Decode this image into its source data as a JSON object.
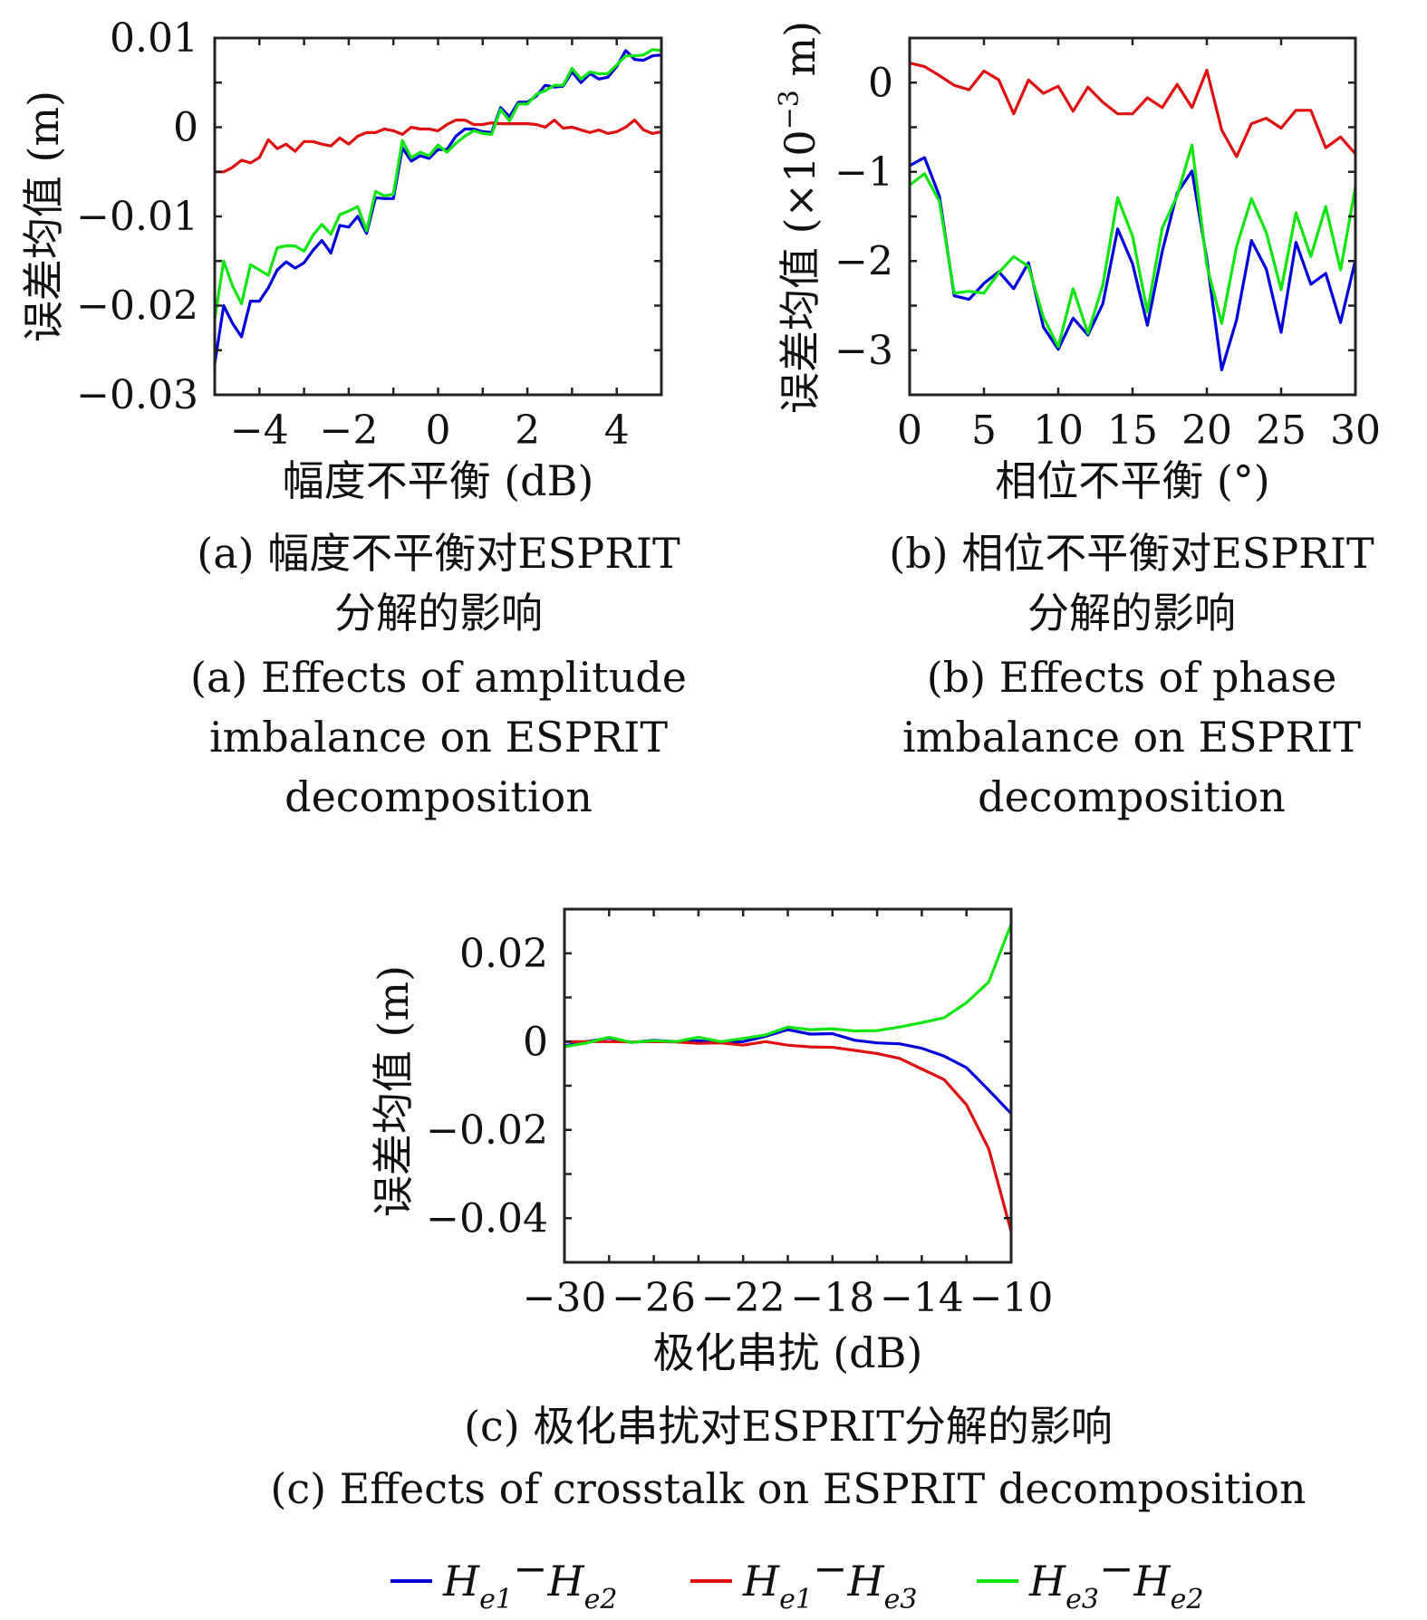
{
  "colors": {
    "He1-He2": "#0000dd",
    "He1-He3": "#e01010",
    "He3-He2": "#11e611"
  },
  "legend": {
    "items": [
      {
        "series": "He1-He2",
        "a": "H",
        "sa": "e1",
        "b": "H",
        "sb": "e2",
        "sep": "−"
      },
      {
        "series": "He1-He3",
        "a": "H",
        "sa": "e1",
        "b": "H",
        "sb": "e3",
        "sep": "−"
      },
      {
        "series": "He3-He2",
        "a": "H",
        "sa": "e3",
        "b": "H",
        "sb": "e2",
        "sep": "−"
      }
    ]
  },
  "chart_data": [
    {
      "type": "line",
      "xlabel": "幅度不平衡 (dB)",
      "ylabel": "误差均值 (m)",
      "xlim": [
        -5,
        5
      ],
      "ylim": [
        -0.03,
        0.01
      ],
      "xticks": [
        -4,
        -2,
        0,
        2,
        4
      ],
      "xtick_labels": [
        "−4",
        "−2",
        "0",
        "2",
        "4"
      ],
      "yticks": [
        -0.03,
        -0.02,
        -0.01,
        0,
        0.01
      ],
      "ytick_labels": [
        "−0.03",
        "−0.02",
        "−0.01",
        "0",
        "0.01"
      ],
      "caption_cn": [
        "(a) 幅度不平衡对ESPRIT",
        "分解的影响"
      ],
      "caption_en": [
        "(a) Effects of amplitude",
        "imbalance on ESPRIT",
        "decomposition"
      ],
      "x": [
        -5,
        -4.8,
        -4.6,
        -4.4,
        -4.2,
        -4,
        -3.8,
        -3.6,
        -3.4,
        -3.2,
        -3,
        -2.8,
        -2.6,
        -2.4,
        -2.2,
        -2,
        -1.8,
        -1.6,
        -1.4,
        -1.2,
        -1,
        -0.8,
        -0.6,
        -0.4,
        -0.2,
        0,
        0.2,
        0.4,
        0.6,
        0.8,
        1,
        1.2,
        1.4,
        1.6,
        1.8,
        2,
        2.2,
        2.4,
        2.6,
        2.8,
        3,
        3.2,
        3.4,
        3.6,
        3.8,
        4,
        4.2,
        4.4,
        4.6,
        4.8,
        5
      ],
      "series": [
        {
          "key": "He1-He2",
          "values": [
            -0.0265,
            -0.02,
            -0.022,
            -0.0235,
            -0.0195,
            -0.0195,
            -0.018,
            -0.016,
            -0.0151,
            -0.0158,
            -0.0152,
            -0.0138,
            -0.0127,
            -0.0141,
            -0.011,
            -0.0112,
            -0.01,
            -0.0119,
            -0.0079,
            -0.008,
            -0.008,
            -0.0023,
            -0.0038,
            -0.0032,
            -0.0035,
            -0.0025,
            -0.0025,
            -0.001,
            -0.0002,
            -0.0002,
            -0.0005,
            -0.0006,
            0.0022,
            0.0012,
            0.0028,
            0.0028,
            0.0035,
            0.0047,
            0.0045,
            0.0046,
            0.0062,
            0.005,
            0.006,
            0.0054,
            0.0056,
            0.0068,
            0.0086,
            0.0076,
            0.0075,
            0.008,
            0.0081
          ]
        },
        {
          "key": "He1-He3",
          "values": [
            -0.005,
            -0.005,
            -0.0045,
            -0.0037,
            -0.004,
            -0.0034,
            -0.0014,
            -0.0024,
            -0.0019,
            -0.0027,
            -0.0016,
            -0.0016,
            -0.0019,
            -0.0021,
            -0.0012,
            -0.0019,
            -0.001,
            -0.0006,
            -0.0006,
            -0.0002,
            -0.0004,
            -0.0008,
            0,
            -0.0002,
            -0.0002,
            -0.0004,
            0.0003,
            0.0008,
            0.0008,
            0.0003,
            0.0003,
            0.0005,
            0.0004,
            0.0004,
            0.0004,
            0.0004,
            0.0003,
            0,
            0.0008,
            -0.0001,
            0,
            -0.0003,
            -0.0006,
            -0.0003,
            -0.0007,
            -0.0005,
            0,
            0.0008,
            -0.0003,
            -0.0007,
            -0.0005
          ]
        },
        {
          "key": "He3-He2",
          "values": [
            -0.0215,
            -0.015,
            -0.0178,
            -0.0198,
            -0.0154,
            -0.016,
            -0.0166,
            -0.0135,
            -0.0133,
            -0.0133,
            -0.0139,
            -0.0121,
            -0.0109,
            -0.012,
            -0.0098,
            -0.0094,
            -0.0089,
            -0.0116,
            -0.0072,
            -0.0077,
            -0.0075,
            -0.0015,
            -0.0034,
            -0.0028,
            -0.0032,
            -0.002,
            -0.0028,
            -0.0018,
            -0.001,
            -0.0004,
            -0.0007,
            -0.0008,
            0.002,
            0.0007,
            0.0026,
            0.0026,
            0.0037,
            0.0041,
            0.0047,
            0.0047,
            0.0066,
            0.0054,
            0.0062,
            0.006,
            0.006,
            0.007,
            0.008,
            0.008,
            0.0081,
            0.0087,
            0.0086
          ]
        }
      ]
    },
    {
      "type": "line",
      "xlabel": "相位不平衡 (°)",
      "ylabel": "误差均值 (×10",
      "ylabel_sup": "−3",
      "ylabel_tail": " m)",
      "xlim": [
        0,
        30
      ],
      "ylim": [
        -3.5,
        0.5
      ],
      "xticks": [
        0,
        5,
        10,
        15,
        20,
        25,
        30
      ],
      "xtick_labels": [
        "0",
        "5",
        "10",
        "15",
        "20",
        "25",
        "30"
      ],
      "yticks": [
        -3,
        -2,
        -1,
        0
      ],
      "ytick_labels": [
        "−3",
        "−2",
        "−1",
        "0"
      ],
      "caption_cn": [
        "(b) 相位不平衡对ESPRIT",
        "分解的影响"
      ],
      "caption_en": [
        "(b) Effects of phase",
        "imbalance on ESPRIT",
        "decomposition"
      ],
      "x": [
        0,
        1,
        2,
        3,
        4,
        5,
        6,
        7,
        8,
        9,
        10,
        11,
        12,
        13,
        14,
        15,
        16,
        17,
        18,
        19,
        20,
        21,
        22,
        23,
        24,
        25,
        26,
        27,
        28,
        29,
        30
      ],
      "series": [
        {
          "key": "He1-He2",
          "values": [
            -0.93,
            -0.84,
            -1.27,
            -2.39,
            -2.43,
            -2.25,
            -2.12,
            -2.31,
            -2.02,
            -2.74,
            -2.99,
            -2.64,
            -2.83,
            -2.48,
            -1.64,
            -2.03,
            -2.72,
            -1.89,
            -1.24,
            -0.99,
            -1.98,
            -3.22,
            -2.66,
            -1.77,
            -2.09,
            -2.8,
            -1.79,
            -2.26,
            -2.14,
            -2.69,
            -1.99
          ]
        },
        {
          "key": "He1-He3",
          "values": [
            0.22,
            0.18,
            0.08,
            -0.03,
            -0.08,
            0.13,
            0.03,
            -0.35,
            0.03,
            -0.12,
            -0.04,
            -0.32,
            -0.05,
            -0.22,
            -0.35,
            -0.35,
            -0.17,
            -0.28,
            -0.02,
            -0.28,
            0.14,
            -0.53,
            -0.83,
            -0.46,
            -0.4,
            -0.51,
            -0.31,
            -0.31,
            -0.73,
            -0.61,
            -0.8
          ]
        },
        {
          "key": "He3-He2",
          "values": [
            -1.15,
            -1.02,
            -1.33,
            -2.36,
            -2.34,
            -2.36,
            -2.13,
            -1.95,
            -2.06,
            -2.63,
            -2.96,
            -2.31,
            -2.81,
            -2.27,
            -1.29,
            -1.72,
            -2.57,
            -1.63,
            -1.27,
            -0.7,
            -2.05,
            -2.7,
            -1.84,
            -1.3,
            -1.68,
            -2.32,
            -1.46,
            -1.95,
            -1.39,
            -2.1,
            -1.17
          ]
        }
      ]
    },
    {
      "type": "line",
      "xlabel": "极化串扰 (dB)",
      "ylabel": "误差均值 (m)",
      "xlim": [
        -30,
        -10
      ],
      "ylim": [
        -0.05,
        0.03
      ],
      "xticks": [
        -30,
        -26,
        -22,
        -18,
        -14,
        -10
      ],
      "xtick_labels": [
        "−30",
        "−26",
        "−22",
        "−18",
        "−14",
        "−10"
      ],
      "yticks": [
        -0.04,
        -0.02,
        0,
        0.02
      ],
      "ytick_labels": [
        "−0.04",
        "−0.02",
        "0",
        "0.02"
      ],
      "caption_cn": [
        "(c) 极化串扰对ESPRIT分解的影响"
      ],
      "caption_en": [
        "(c) Effects of crosstalk on ESPRIT decomposition"
      ],
      "x": [
        -30,
        -29,
        -28,
        -27,
        -26,
        -25,
        -24,
        -23,
        -22,
        -21,
        -20,
        -19,
        -18,
        -17,
        -16,
        -15,
        -14,
        -13,
        -12,
        -11,
        -10
      ],
      "series": [
        {
          "key": "He1-He2",
          "values": [
            -0.001,
            0,
            0.0008,
            -0.0002,
            0.0003,
            0,
            0.0002,
            -0.0002,
            0,
            0.0012,
            0.0027,
            0.0017,
            0.0018,
            0.0003,
            -0.0003,
            -0.0005,
            -0.0015,
            -0.0033,
            -0.0059,
            -0.011,
            -0.0163
          ]
        },
        {
          "key": "He1-He3",
          "values": [
            0,
            0,
            0,
            -0.0001,
            0,
            -0.0001,
            -0.0004,
            -0.0003,
            -0.0008,
            0,
            -0.0008,
            -0.0012,
            -0.0013,
            -0.002,
            -0.0027,
            -0.0038,
            -0.0062,
            -0.0086,
            -0.0143,
            -0.0243,
            -0.043
          ]
        },
        {
          "key": "He3-He2",
          "values": [
            -0.0012,
            -0.0003,
            0.001,
            -0.0002,
            0.0002,
            0,
            0.001,
            0,
            0.0007,
            0.0015,
            0.0033,
            0.0027,
            0.0029,
            0.0024,
            0.0025,
            0.0033,
            0.0043,
            0.0054,
            0.0088,
            0.0135,
            0.0266
          ]
        }
      ]
    }
  ]
}
